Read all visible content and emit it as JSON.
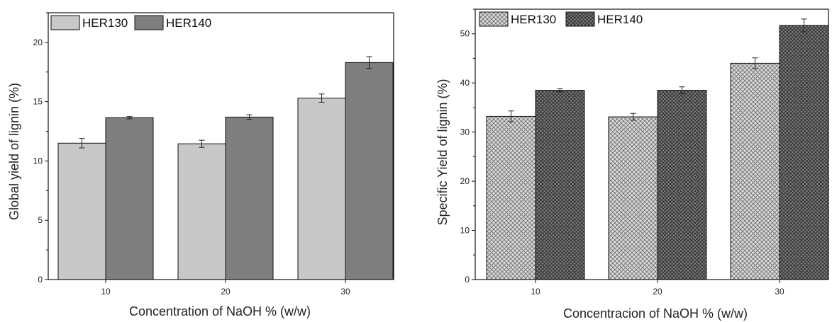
{
  "chart_data": [
    {
      "type": "bar",
      "title": "",
      "xlabel": "Concentration of NaOH % (w/w)",
      "ylabel": "Global yield of lignin (%)",
      "categories": [
        "10",
        "20",
        "30"
      ],
      "ylim": [
        0,
        22.5
      ],
      "yticks": [
        "0",
        "5",
        "10",
        "15",
        "20"
      ],
      "legend_position": "top-left",
      "grid": false,
      "series": [
        {
          "name": "HER130",
          "color": "#c8c8c8",
          "pattern": "solid",
          "values": [
            11.5,
            11.45,
            15.3
          ],
          "errors": [
            0.4,
            0.3,
            0.35
          ]
        },
        {
          "name": "HER140",
          "color": "#7f7f7f",
          "pattern": "solid",
          "values": [
            13.65,
            13.7,
            18.3
          ],
          "errors": [
            0.1,
            0.2,
            0.5
          ]
        }
      ]
    },
    {
      "type": "bar",
      "title": "",
      "xlabel": "Concentracion of NaOH % (w/w)",
      "ylabel": "Specific Yield of lignin (%)",
      "categories": [
        "10",
        "20",
        "30"
      ],
      "ylim": [
        0,
        55
      ],
      "yticks": [
        "0",
        "10",
        "20",
        "30",
        "40",
        "50"
      ],
      "legend_position": "top-left",
      "grid": false,
      "series": [
        {
          "name": "HER130",
          "color": "#b0b0b0",
          "pattern": "crosshatch-light",
          "values": [
            33.2,
            33.1,
            44.0
          ],
          "errors": [
            1.1,
            0.7,
            1.1
          ]
        },
        {
          "name": "HER140",
          "color": "#606060",
          "pattern": "crosshatch-dark",
          "values": [
            38.5,
            38.5,
            51.7
          ],
          "errors": [
            0.3,
            0.7,
            1.3
          ]
        }
      ]
    }
  ]
}
